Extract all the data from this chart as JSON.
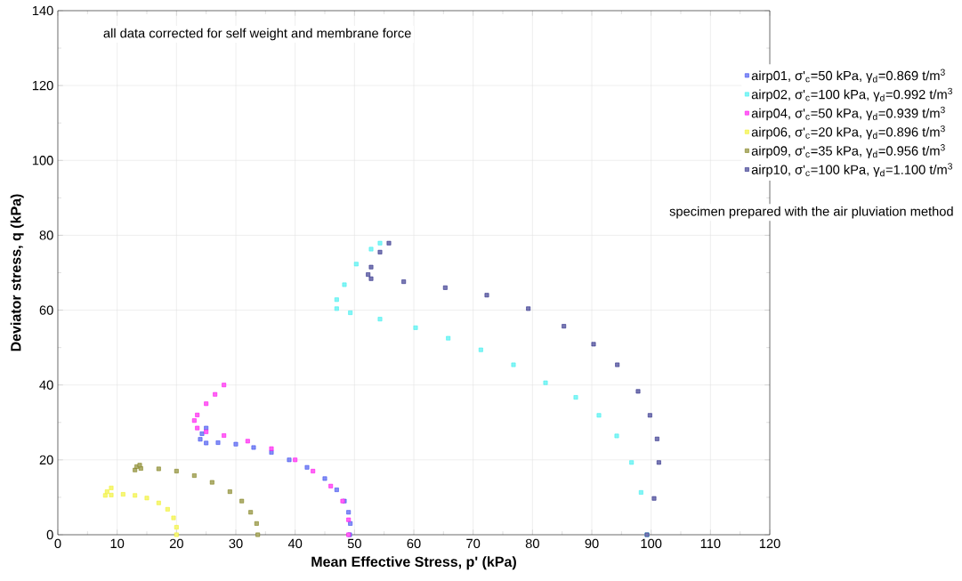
{
  "chart_data": {
    "type": "scatter",
    "xlabel": "Mean Effective Stress, p' (kPa)",
    "ylabel": "Deviator stress, q (kPa)",
    "xlim": [
      0,
      120
    ],
    "ylim": [
      0,
      140
    ],
    "xticks": [
      0,
      10,
      20,
      30,
      40,
      50,
      60,
      70,
      80,
      90,
      100,
      110,
      120
    ],
    "yticks": [
      0,
      20,
      40,
      60,
      80,
      100,
      120,
      140
    ],
    "grid": true,
    "legend": "top right",
    "marker": "square",
    "annotations": [
      "all data corrected for self weight and membrane force",
      "specimen prepared with the air pluviation method"
    ],
    "series": [
      {
        "name": "airp01, σ'$_{c}$=50 kPa, γ$_{d}$=0.869 t/m$^{3}$",
        "color": "#3344ee",
        "x": [
          49.2,
          49.3,
          49,
          48.3,
          47,
          45,
          42,
          39,
          36,
          33,
          30,
          27,
          25,
          24,
          24.3,
          25
        ],
        "values": [
          0,
          3,
          6,
          9,
          12,
          15,
          18,
          20,
          22,
          23.3,
          24.2,
          24.6,
          24.5,
          25.5,
          27,
          28.5
        ]
      },
      {
        "name": "airp02, σ'$_{c}$=100 kPa, γ$_{d}$=0.992 t/m$^{3}$",
        "color": "#33eeee",
        "x": [
          99.3,
          98.3,
          96.7,
          94.2,
          91.2,
          87.3,
          82.2,
          76.8,
          71.3,
          65.8,
          60.3,
          54.3,
          49.3,
          47,
          47,
          48.3,
          50.3,
          52.8,
          54.3
        ],
        "values": [
          0,
          11.3,
          19.3,
          26.4,
          31.9,
          36.7,
          40.6,
          45.4,
          49.4,
          52.5,
          55.3,
          57.6,
          59.3,
          60.4,
          62.8,
          66.8,
          72.3,
          76.3,
          77.9
        ]
      },
      {
        "name": "airp04, σ'$_{c}$=50 kPa, γ$_{d}$=0.939 t/m$^{3}$",
        "color": "#ff00ee",
        "x": [
          49,
          49,
          48,
          46,
          43,
          40,
          36,
          32,
          28,
          25,
          23.5,
          23,
          23.5,
          25,
          26.5,
          28
        ],
        "values": [
          0,
          4,
          9,
          13,
          17,
          20,
          23,
          25,
          26.5,
          27.5,
          28.5,
          30.5,
          32,
          35,
          37.5,
          40
        ]
      },
      {
        "name": "airp06, σ'$_{c}$=20 kPa, γ$_{d}$=0.896 t/m$^{3}$",
        "color": "#f0f020",
        "x": [
          20,
          20,
          19.5,
          18.5,
          17,
          15,
          13,
          11,
          9,
          8,
          8.3,
          9
        ],
        "values": [
          0,
          2,
          4.5,
          6.8,
          8.5,
          9.8,
          10.5,
          10.8,
          10.6,
          10.5,
          11.5,
          12.5
        ]
      },
      {
        "name": "airp09, σ'$_{c}$=35 kPa, γ$_{d}$=0.956 t/m$^{3}$",
        "color": "#7a7a10",
        "x": [
          33.7,
          33.5,
          32.5,
          31,
          29,
          26,
          23,
          20,
          17,
          14,
          13,
          13.3,
          13.8
        ],
        "values": [
          0,
          3,
          6,
          9,
          11.5,
          14,
          15.8,
          17,
          17.6,
          17.7,
          17.3,
          18.2,
          18.6
        ]
      },
      {
        "name": "airp10, σ'$_{c}$=100 kPa, γ$_{d}$=1.100 t/m$^{3}$",
        "color": "#1f1f80",
        "x": [
          99.3,
          100.5,
          101.3,
          101,
          99.8,
          97.8,
          94.3,
          90.3,
          85.3,
          79.3,
          72.3,
          65.3,
          58.3,
          52.8,
          52.3,
          52.8,
          54.3,
          55.8
        ],
        "values": [
          0,
          9.7,
          19.3,
          25.6,
          31.9,
          38.3,
          45.4,
          50.9,
          55.7,
          60.4,
          64,
          66,
          67.6,
          68.4,
          69.5,
          71.5,
          75.5,
          77.9
        ]
      }
    ]
  }
}
